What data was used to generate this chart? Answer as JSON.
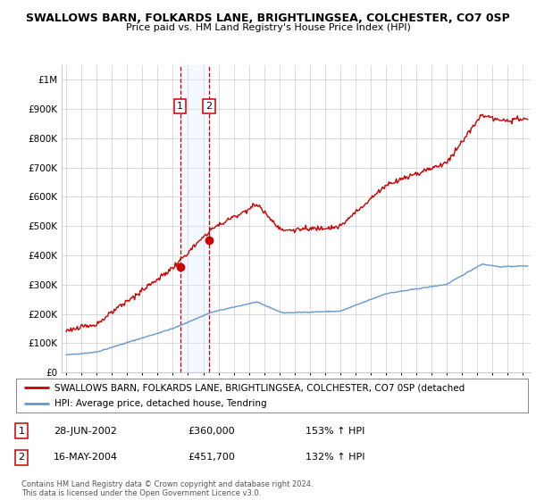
{
  "title": "SWALLOWS BARN, FOLKARDS LANE, BRIGHTLINGSEA, COLCHESTER, CO7 0SP",
  "subtitle": "Price paid vs. HM Land Registry's House Price Index (HPI)",
  "legend_line1": "SWALLOWS BARN, FOLKARDS LANE, BRIGHTLINGSEA, COLCHESTER, CO7 0SP (detached",
  "legend_line2": "HPI: Average price, detached house, Tendring",
  "footer1": "Contains HM Land Registry data © Crown copyright and database right 2024.",
  "footer2": "This data is licensed under the Open Government Licence v3.0.",
  "sale1_label": "1",
  "sale1_date": "28-JUN-2002",
  "sale1_price": 360000,
  "sale1_price_str": "£360,000",
  "sale1_hpi": "153% ↑ HPI",
  "sale2_label": "2",
  "sale2_date": "16-MAY-2004",
  "sale2_price": 451700,
  "sale2_price_str": "£451,700",
  "sale2_hpi": "132% ↑ HPI",
  "sale1_x": 2002.49,
  "sale2_x": 2004.37,
  "hpi_color": "#6699cc",
  "price_color": "#cc0000",
  "highlight_color": "#ddeeff",
  "dashed_color": "#cc0000",
  "grid_color": "#cccccc",
  "bg_color": "#ffffff",
  "ylim_min": 0,
  "ylim_max": 1050000,
  "xlim_min": 1994.7,
  "xlim_max": 2025.5,
  "xtick_start": 1995,
  "xtick_end": 2025
}
